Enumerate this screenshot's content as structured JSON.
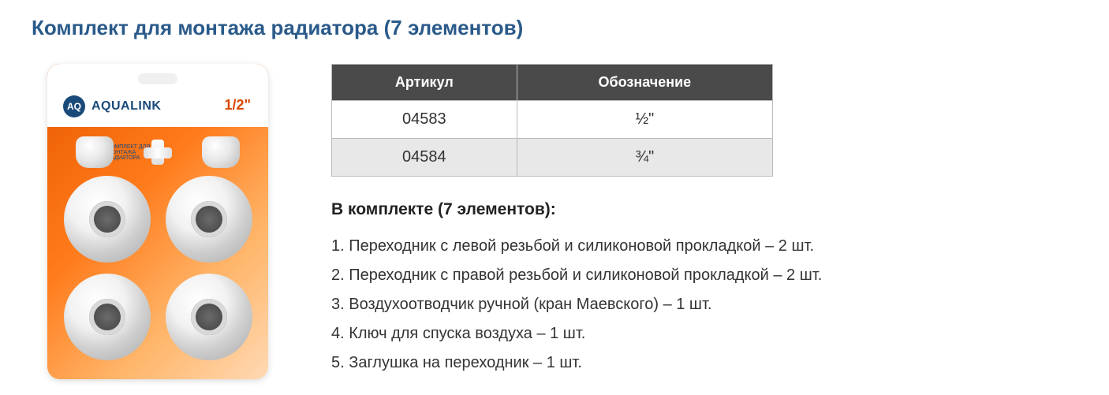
{
  "title": "Комплект для монтажа радиатора (7 элементов)",
  "product": {
    "brand": "AQUALINK",
    "logo_initials": "AQ",
    "size_marker": "1/2\"",
    "subtitle": "КОМПЛЕКТ ДЛЯ МОНТАЖА РАДИАТОРА"
  },
  "table": {
    "columns": [
      "Артикул",
      "Обозначение"
    ],
    "rows": [
      [
        "04583",
        "½\""
      ],
      [
        "04584",
        "¾\""
      ]
    ],
    "header_bg": "#4a4a4a",
    "header_color": "#ffffff",
    "row_odd_bg": "#ffffff",
    "row_even_bg": "#e8e8e8",
    "border_color": "#bbbbbb"
  },
  "contents": {
    "heading": "В комплекте (7 элементов):",
    "items": [
      "1. Переходник с левой резьбой и силиконовой прокладкой – 2 шт.",
      "2. Переходник с правой резьбой и силиконовой прокладкой – 2 шт.",
      "3. Воздухоотводчик ручной (кран Маевского) – 1 шт.",
      "4. Ключ для спуска воздуха – 1 шт.",
      "5. Заглушка на переходник – 1 шт."
    ]
  },
  "colors": {
    "title_color": "#2a5a8a",
    "text_color": "#333333",
    "package_gradient_start": "#e85a00",
    "package_gradient_end": "#ffd9b3"
  }
}
